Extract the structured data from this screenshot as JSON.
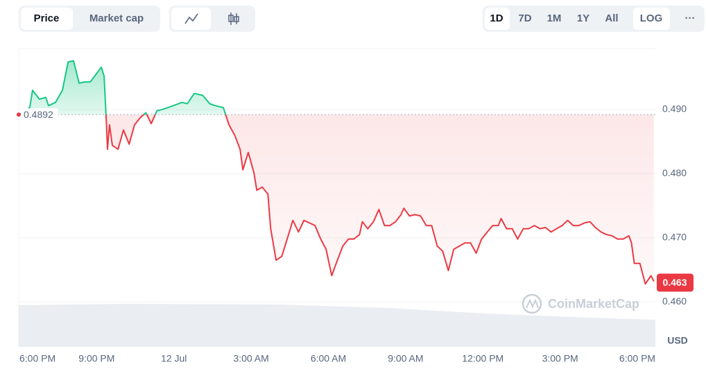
{
  "toolbar": {
    "chart_mode_tabs": [
      "Price",
      "Market cap"
    ],
    "ranges": [
      "1D",
      "7D",
      "1M",
      "1Y",
      "All"
    ],
    "log": "LOG",
    "more": "···"
  },
  "watermark": "CoinMarketCap",
  "chart_data": {
    "type": "line",
    "x": [
      0,
      0.4,
      0.51,
      0.78,
      1.02,
      1.13,
      1.4,
      1.67,
      1.89,
      2.1,
      2.32,
      2.53,
      2.75,
      2.96,
      3.18,
      3.29,
      3.37,
      3.42,
      3.5,
      3.61,
      3.83,
      4.04,
      4.26,
      4.47,
      4.69,
      4.91,
      5.12,
      5.34,
      5.55,
      5.77,
      5.98,
      6.31,
      6.52,
      6.79,
      7.12,
      7.39,
      7.6,
      7.92,
      8.14,
      8.36,
      8.57,
      8.68,
      8.89,
      9.11,
      9.22,
      9.43,
      9.65,
      9.76,
      9.97,
      10.19,
      10.4,
      10.62,
      10.84,
      11.05,
      11.27,
      11.48,
      11.7,
      11.91,
      12.13,
      12.35,
      12.56,
      12.78,
      12.99,
      13.21,
      13.32,
      13.53,
      13.75,
      13.96,
      14.18,
      14.39,
      14.61,
      14.82,
      14.93,
      15.15,
      15.36,
      15.58,
      15.8,
      16.01,
      16.23,
      16.44,
      16.66,
      16.87,
      17.09,
      17.3,
      17.52,
      17.74,
      17.95,
      18.17,
      18.38,
      18.6,
      18.71,
      18.92,
      19.14,
      19.35,
      19.57,
      19.78,
      20.0,
      20.22,
      20.43,
      20.65,
      20.86,
      21.08,
      21.29,
      21.51,
      21.73,
      21.94,
      22.16,
      22.37,
      22.59,
      22.8,
      23.02,
      23.23,
      23.45,
      23.67,
      23.77,
      23.88,
      24.1,
      24.31,
      24.53,
      24.64
    ],
    "values": [
      0.4892,
      0.4903,
      0.493,
      0.4916,
      0.4919,
      0.4906,
      0.4911,
      0.493,
      0.4974,
      0.4976,
      0.4941,
      0.4943,
      0.4943,
      0.4954,
      0.4966,
      0.4952,
      0.4887,
      0.4838,
      0.4876,
      0.4844,
      0.4838,
      0.4868,
      0.4846,
      0.4876,
      0.4887,
      0.4895,
      0.4878,
      0.4898,
      0.49,
      0.4903,
      0.4906,
      0.4911,
      0.4909,
      0.4925,
      0.4922,
      0.4909,
      0.4906,
      0.4903,
      0.4876,
      0.486,
      0.4838,
      0.4806,
      0.4833,
      0.4801,
      0.4774,
      0.4779,
      0.4768,
      0.4714,
      0.4665,
      0.4671,
      0.4698,
      0.4727,
      0.4709,
      0.4727,
      0.4723,
      0.4719,
      0.4698,
      0.4682,
      0.4641,
      0.4665,
      0.4687,
      0.4698,
      0.4698,
      0.4705,
      0.4725,
      0.4714,
      0.4725,
      0.4744,
      0.4719,
      0.4719,
      0.4725,
      0.4736,
      0.4746,
      0.4734,
      0.4736,
      0.4734,
      0.4719,
      0.4719,
      0.4687,
      0.4679,
      0.4649,
      0.4682,
      0.4687,
      0.4692,
      0.4692,
      0.4676,
      0.4698,
      0.4709,
      0.4719,
      0.4719,
      0.473,
      0.4714,
      0.4714,
      0.4698,
      0.4714,
      0.4714,
      0.4719,
      0.4714,
      0.4716,
      0.4709,
      0.4714,
      0.4719,
      0.4727,
      0.4719,
      0.4719,
      0.4723,
      0.4725,
      0.4716,
      0.4709,
      0.4705,
      0.4703,
      0.4698,
      0.4698,
      0.4703,
      0.4692,
      0.466,
      0.466,
      0.4628,
      0.4641,
      0.4632
    ],
    "up_color": "#16c784",
    "down_color": "#ea3943",
    "reference_price": 0.4892,
    "current_price": 0.463,
    "currency": "USD",
    "xlim": [
      0,
      24.7
    ],
    "xticks": [
      {
        "value": 0,
        "label": "6:00 PM"
      },
      {
        "value": 3,
        "label": "9:00 PM"
      },
      {
        "value": 6,
        "label": "12 Jul"
      },
      {
        "value": 9,
        "label": "3:00 AM"
      },
      {
        "value": 12,
        "label": "6:00 AM"
      },
      {
        "value": 15,
        "label": "9:00 AM"
      },
      {
        "value": 18,
        "label": "12:00 PM"
      },
      {
        "value": 21,
        "label": "3:00 PM"
      },
      {
        "value": 24,
        "label": "6:00 PM"
      }
    ],
    "ylim": [
      0.453,
      0.4995
    ],
    "yticks": [
      {
        "value": 0.46,
        "label": "0.460"
      },
      {
        "value": 0.47,
        "label": "0.470"
      },
      {
        "value": 0.48,
        "label": "0.480"
      },
      {
        "value": 0.49,
        "label": "0.490"
      }
    ],
    "grid": true
  }
}
